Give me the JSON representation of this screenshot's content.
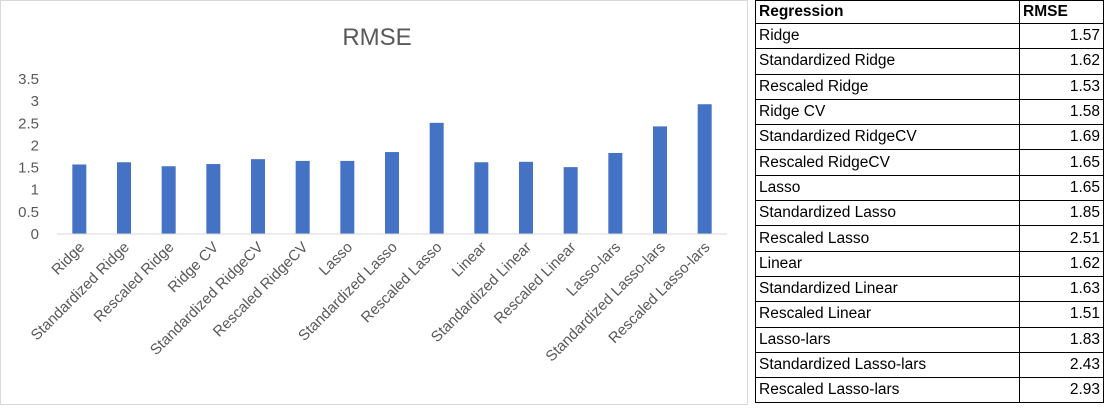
{
  "chart_data": {
    "type": "bar",
    "title": "RMSE",
    "categories": [
      "Ridge",
      "Standardized Ridge",
      "Rescaled Ridge",
      "Ridge CV",
      "Standardized RidgeCV",
      "Rescaled RidgeCV",
      "Lasso",
      "Standardized Lasso",
      "Rescaled Lasso",
      "Linear",
      "Standardized Linear",
      "Rescaled Linear",
      "Lasso-lars",
      "Standardized Lasso-lars",
      "Rescaled Lasso-lars"
    ],
    "values": [
      1.57,
      1.62,
      1.53,
      1.58,
      1.69,
      1.65,
      1.65,
      1.85,
      2.51,
      1.62,
      1.63,
      1.51,
      1.83,
      2.43,
      2.93
    ],
    "ylim": [
      0,
      3.5
    ],
    "yticks": [
      "0",
      "0.5",
      "1",
      "1.5",
      "2",
      "2.5",
      "3",
      "3.5"
    ],
    "bar_color": "#4472c4",
    "grid": false,
    "legend": "none"
  },
  "table": {
    "headers": [
      "Regression",
      "RMSE"
    ],
    "rows": [
      [
        "Ridge",
        "1.57"
      ],
      [
        "Standardized Ridge",
        "1.62"
      ],
      [
        "Rescaled Ridge",
        "1.53"
      ],
      [
        "Ridge CV",
        "1.58"
      ],
      [
        "Standardized RidgeCV",
        "1.69"
      ],
      [
        "Rescaled RidgeCV",
        "1.65"
      ],
      [
        "Lasso",
        "1.65"
      ],
      [
        "Standardized Lasso",
        "1.85"
      ],
      [
        "Rescaled Lasso",
        "2.51"
      ],
      [
        "Linear",
        "1.62"
      ],
      [
        "Standardized Linear",
        "1.63"
      ],
      [
        "Rescaled Linear",
        "1.51"
      ],
      [
        "Lasso-lars",
        "1.83"
      ],
      [
        "Standardized Lasso-lars",
        "2.43"
      ],
      [
        "Rescaled Lasso-lars",
        "2.93"
      ]
    ]
  }
}
